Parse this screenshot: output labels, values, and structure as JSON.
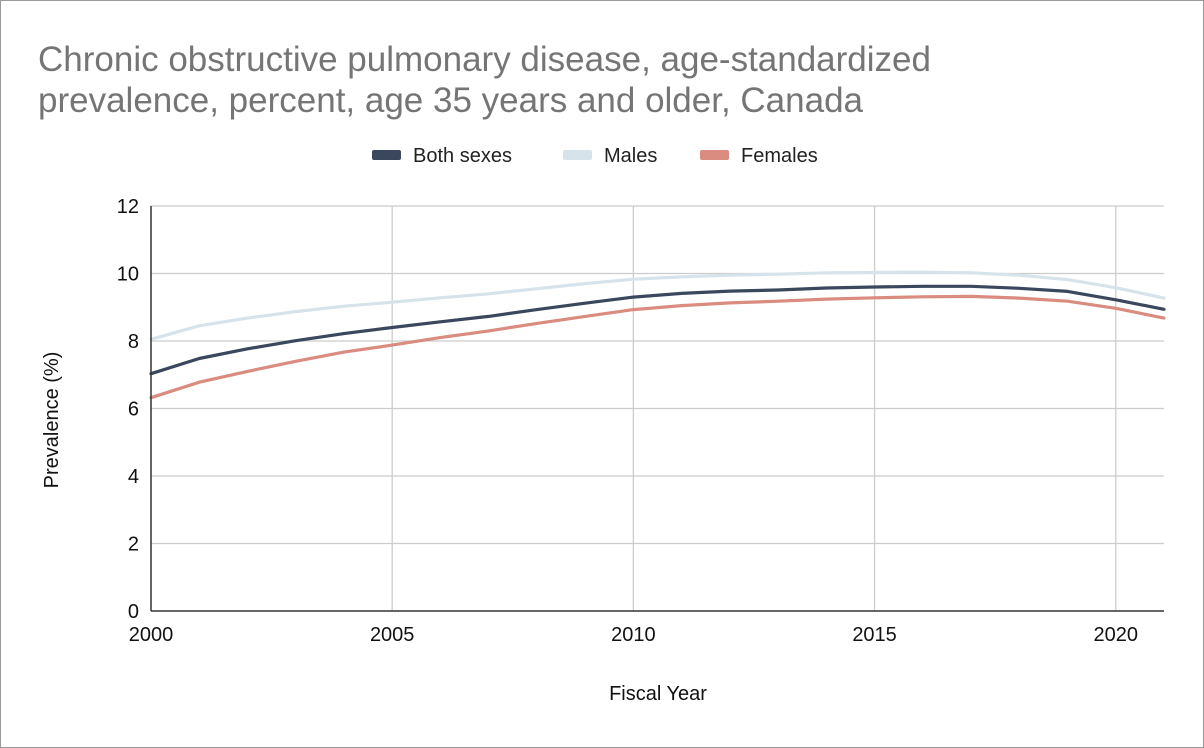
{
  "chart_data": {
    "type": "line",
    "title_lines": [
      "Chronic obstructive pulmonary disease, age-standardized",
      "prevalence, percent, age 35 years and older, Canada"
    ],
    "xlabel": "Fiscal Year",
    "ylabel": "Prevalence (%)",
    "xlim": [
      2000,
      2021
    ],
    "ylim": [
      0,
      12
    ],
    "x_ticks": [
      2000,
      2005,
      2010,
      2015,
      2020
    ],
    "y_ticks": [
      0,
      2,
      4,
      6,
      8,
      10,
      12
    ],
    "grid": true,
    "legend_position": "top",
    "x": [
      2000,
      2001,
      2002,
      2003,
      2004,
      2005,
      2006,
      2007,
      2008,
      2009,
      2010,
      2011,
      2012,
      2013,
      2014,
      2015,
      2016,
      2017,
      2018,
      2019,
      2020,
      2021
    ],
    "series": [
      {
        "name": "Males",
        "color": "#d7e3ea",
        "values": [
          8.05,
          8.45,
          8.68,
          8.87,
          9.03,
          9.15,
          9.28,
          9.4,
          9.55,
          9.7,
          9.83,
          9.9,
          9.95,
          9.98,
          10.02,
          10.03,
          10.04,
          10.02,
          9.95,
          9.82,
          9.58,
          9.27
        ]
      },
      {
        "name": "Females",
        "color": "#d98c7f",
        "values": [
          6.32,
          6.78,
          7.1,
          7.4,
          7.67,
          7.88,
          8.1,
          8.3,
          8.52,
          8.73,
          8.93,
          9.05,
          9.13,
          9.18,
          9.24,
          9.28,
          9.31,
          9.32,
          9.27,
          9.18,
          8.97,
          8.68
        ]
      },
      {
        "name": "Both sexes",
        "color": "#3a475c",
        "values": [
          7.03,
          7.48,
          7.77,
          8.01,
          8.22,
          8.4,
          8.57,
          8.73,
          8.93,
          9.12,
          9.3,
          9.41,
          9.48,
          9.51,
          9.57,
          9.6,
          9.62,
          9.62,
          9.56,
          9.47,
          9.22,
          8.94
        ]
      }
    ],
    "legend": [
      {
        "name": "Both sexes",
        "color": "#3a475c"
      },
      {
        "name": "Males",
        "color": "#d7e3ea"
      },
      {
        "name": "Females",
        "color": "#d98c7f"
      }
    ]
  }
}
